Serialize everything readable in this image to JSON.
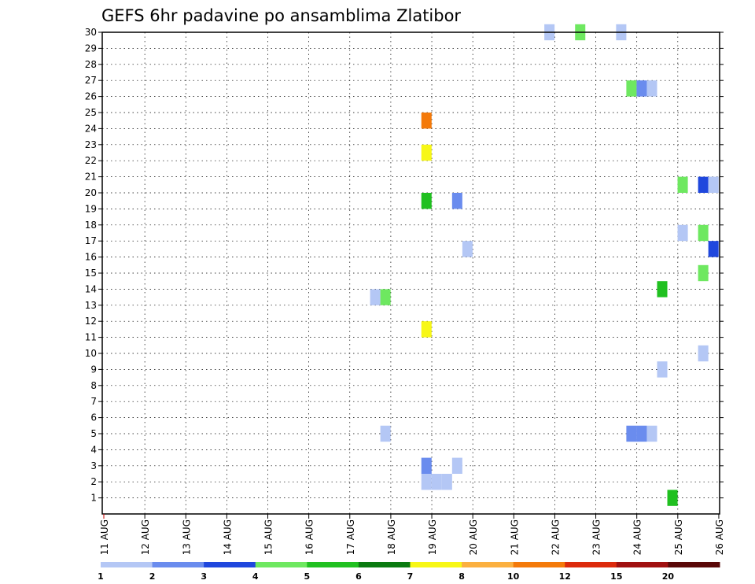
{
  "chart_data": {
    "type": "heatmap",
    "title": "GEFS 6hr padavine po ansamblima Zlatibor",
    "xlabel": "",
    "ylabel": "",
    "x_tick_labels": [
      "11 AUG",
      "12 AUG",
      "13 AUG",
      "14 AUG",
      "15 AUG",
      "16 AUG",
      "17 AUG",
      "18 AUG",
      "19 AUG",
      "20 AUG",
      "21 AUG",
      "22 AUG",
      "23 AUG",
      "24 AUG",
      "25 AUG",
      "26 AUG"
    ],
    "xlim_days": [
      11,
      26
    ],
    "y_tick_labels": [
      "1",
      "2",
      "3",
      "4",
      "5",
      "6",
      "7",
      "8",
      "9",
      "10",
      "11",
      "12",
      "13",
      "14",
      "15",
      "16",
      "17",
      "18",
      "19",
      "20",
      "21",
      "22",
      "23",
      "24",
      "25",
      "26",
      "27",
      "28",
      "29",
      "30"
    ],
    "ylim": [
      0,
      30
    ],
    "grid": true,
    "time_step_hours": 6,
    "colorbar": {
      "boundaries": [
        "1",
        "2",
        "3",
        "4",
        "5",
        "6",
        "7",
        "8",
        "10",
        "12",
        "15",
        "20"
      ],
      "colors": [
        "#b4c7f5",
        "#6a8cee",
        "#1f47dd",
        "#6ee860",
        "#20c020",
        "#0a7a10",
        "#f7f716",
        "#fbb040",
        "#f47a0a",
        "#dc2a0c",
        "#a01010",
        "#5a0808"
      ]
    },
    "cells": [
      {
        "day": 21.87,
        "member": 30,
        "color": "#b4c7f5"
      },
      {
        "day": 22.62,
        "member": 30,
        "color": "#6ee860"
      },
      {
        "day": 23.62,
        "member": 30,
        "color": "#b4c7f5"
      },
      {
        "day": 23.87,
        "member": 26.5,
        "color": "#6ee860"
      },
      {
        "day": 24.12,
        "member": 26.5,
        "color": "#6a8cee"
      },
      {
        "day": 24.37,
        "member": 26.5,
        "color": "#b4c7f5"
      },
      {
        "day": 18.87,
        "member": 24.5,
        "color": "#f47a0a"
      },
      {
        "day": 18.87,
        "member": 22.5,
        "color": "#f7f716"
      },
      {
        "day": 25.12,
        "member": 20.5,
        "color": "#6ee860"
      },
      {
        "day": 25.62,
        "member": 20.5,
        "color": "#1f47dd"
      },
      {
        "day": 25.87,
        "member": 20.5,
        "color": "#b4c7f5"
      },
      {
        "day": 18.87,
        "member": 19.5,
        "color": "#20c020"
      },
      {
        "day": 19.62,
        "member": 19.5,
        "color": "#6a8cee"
      },
      {
        "day": 25.12,
        "member": 17.5,
        "color": "#b4c7f5"
      },
      {
        "day": 25.62,
        "member": 17.5,
        "color": "#6ee860"
      },
      {
        "day": 19.87,
        "member": 16.5,
        "color": "#b4c7f5"
      },
      {
        "day": 25.87,
        "member": 16.5,
        "color": "#1f47dd"
      },
      {
        "day": 25.62,
        "member": 15,
        "color": "#6ee860"
      },
      {
        "day": 24.62,
        "member": 14,
        "color": "#20c020"
      },
      {
        "day": 17.62,
        "member": 13.5,
        "color": "#b4c7f5"
      },
      {
        "day": 17.87,
        "member": 13.5,
        "color": "#6ee860"
      },
      {
        "day": 18.87,
        "member": 11.5,
        "color": "#f7f716"
      },
      {
        "day": 25.62,
        "member": 10,
        "color": "#b4c7f5"
      },
      {
        "day": 24.62,
        "member": 9,
        "color": "#b4c7f5"
      },
      {
        "day": 17.87,
        "member": 5,
        "color": "#b4c7f5"
      },
      {
        "day": 23.87,
        "member": 5,
        "color": "#6a8cee"
      },
      {
        "day": 24.12,
        "member": 5,
        "color": "#6a8cee"
      },
      {
        "day": 24.37,
        "member": 5,
        "color": "#b4c7f5"
      },
      {
        "day": 18.87,
        "member": 3,
        "color": "#6a8cee"
      },
      {
        "day": 19.62,
        "member": 3,
        "color": "#b4c7f5"
      },
      {
        "day": 18.87,
        "member": 2,
        "color": "#b4c7f5"
      },
      {
        "day": 19.12,
        "member": 2,
        "color": "#b4c7f5"
      },
      {
        "day": 19.37,
        "member": 2,
        "color": "#b4c7f5"
      },
      {
        "day": 24.87,
        "member": 1,
        "color": "#20c020"
      }
    ]
  }
}
